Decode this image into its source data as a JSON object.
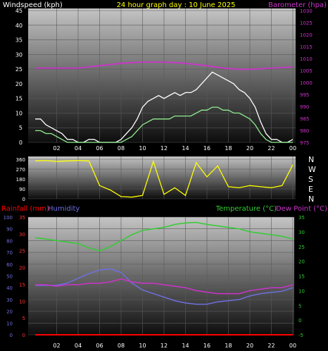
{
  "header": {
    "windspeed_label": "Windspeed (kph)",
    "title": "24 hour graph day : 10 June 2025",
    "barometer_label": "Barometer (hpa)"
  },
  "panel2": {
    "direction_labels": [
      "N",
      "W",
      "S",
      "E",
      "N"
    ]
  },
  "panel3": {
    "rainfall_label": "Rainfall (mm)",
    "humidity_label": "Humidity",
    "temperature_label": "Temperature (°C)",
    "dewpoint_label": "Dew Point (°C)"
  },
  "colors": {
    "windspeed": "#ffffff",
    "wind_average": "#90ee90",
    "barometer": "#cc33cc",
    "wind_direction": "#ffff00",
    "rainfall": "#ff0000",
    "rainfall_rate": "#cc33cc",
    "humidity": "#6f6fe0",
    "temperature": "#33cc33",
    "dewpoint": "#cc33cc",
    "hour_ticks": "#ffff00"
  },
  "chart_data": [
    {
      "type": "line",
      "name": "wind-barometer",
      "x_ticks": [
        "02",
        "04",
        "06",
        "08",
        "10",
        "12",
        "14",
        "16",
        "18",
        "20",
        "22",
        "00"
      ],
      "y_left_ticks": [
        "0",
        "5",
        "10",
        "15",
        "20",
        "25",
        "30",
        "35",
        "40",
        "45"
      ],
      "ylim_left": [
        0,
        45
      ],
      "y_right_ticks": [
        "975",
        "980",
        "985",
        "990",
        "995",
        "1000",
        "1005",
        "1010",
        "1015",
        "1020",
        "1025",
        "1030"
      ],
      "ylim_right": [
        975,
        1030
      ],
      "grid": true,
      "series": [
        {
          "key": "gust",
          "axis": "left",
          "x": [
            0,
            0.5,
            1,
            1.5,
            2,
            2.5,
            3,
            3.5,
            4,
            4.5,
            5,
            5.5,
            6,
            6.5,
            7,
            7.5,
            8,
            8.5,
            9,
            9.5,
            10,
            10.5,
            11,
            11.5,
            12,
            12.5,
            13,
            13.5,
            14,
            14.5,
            15,
            15.5,
            16,
            16.5,
            17,
            17.5,
            18,
            18.5,
            19,
            19.5,
            20,
            20.5,
            21,
            21.5,
            22,
            22.5,
            23,
            23.5,
            24
          ],
          "values": [
            8,
            8,
            6,
            5,
            4,
            3,
            1,
            1,
            0,
            0,
            1,
            1,
            0,
            0,
            0,
            0,
            1,
            3,
            5,
            8,
            12,
            14,
            15,
            16,
            15,
            16,
            17,
            16,
            17,
            17,
            18,
            20,
            22,
            24,
            23,
            22,
            21,
            20,
            18,
            17,
            15,
            12,
            7,
            3,
            1,
            1,
            0,
            0,
            1
          ]
        },
        {
          "key": "average",
          "axis": "left",
          "x": [
            0,
            0.5,
            1,
            1.5,
            2,
            2.5,
            3,
            3.5,
            4,
            4.5,
            5,
            5.5,
            6,
            6.5,
            7,
            7.5,
            8,
            8.5,
            9,
            9.5,
            10,
            10.5,
            11,
            11.5,
            12,
            12.5,
            13,
            13.5,
            14,
            14.5,
            15,
            15.5,
            16,
            16.5,
            17,
            17.5,
            18,
            18.5,
            19,
            19.5,
            20,
            20.5,
            21,
            21.5,
            22,
            22.5,
            23,
            23.5,
            24
          ],
          "values": [
            4,
            4,
            3,
            3,
            2,
            1,
            0,
            0,
            0,
            0,
            0,
            0,
            0,
            0,
            0,
            0,
            0,
            1,
            2,
            4,
            6,
            7,
            8,
            8,
            8,
            8,
            9,
            9,
            9,
            9,
            10,
            11,
            11,
            12,
            12,
            11,
            11,
            10,
            10,
            9,
            8,
            6,
            3,
            1,
            0,
            0,
            0,
            0,
            0
          ]
        },
        {
          "key": "barometer",
          "axis": "right",
          "x": [
            0,
            1,
            2,
            3,
            4,
            5,
            6,
            7,
            8,
            9,
            10,
            11,
            12,
            13,
            14,
            15,
            16,
            17,
            18,
            19,
            20,
            21,
            22,
            23,
            24
          ],
          "values": [
            1006,
            1006,
            1006,
            1006,
            1006,
            1006.5,
            1007,
            1007.5,
            1008,
            1008.3,
            1008.5,
            1008.5,
            1008.5,
            1008.3,
            1008,
            1007.5,
            1007,
            1006.3,
            1005.8,
            1005.5,
            1005.5,
            1005.7,
            1006,
            1006.2,
            1006.5
          ]
        }
      ]
    },
    {
      "type": "line",
      "name": "wind-direction",
      "x_ticks": [
        "02",
        "04",
        "06",
        "08",
        "10",
        "12",
        "14",
        "16",
        "18",
        "20",
        "22",
        "00"
      ],
      "y_ticks": [
        "0",
        "90",
        "180",
        "270",
        "360"
      ],
      "ylim": [
        0,
        360
      ],
      "grid": true,
      "series": [
        {
          "key": "direction",
          "x": [
            0,
            1,
            2,
            3,
            4,
            5,
            6,
            7,
            8,
            9,
            10,
            11,
            12,
            13,
            14,
            15,
            16,
            17,
            18,
            19,
            20,
            21,
            22,
            23,
            24
          ],
          "values": [
            345,
            350,
            340,
            345,
            350,
            345,
            120,
            80,
            20,
            15,
            30,
            340,
            40,
            100,
            30,
            330,
            200,
            300,
            110,
            100,
            120,
            110,
            100,
            120,
            310
          ]
        }
      ]
    },
    {
      "type": "line",
      "name": "temperature-humidity-rain",
      "x_ticks": [
        "02",
        "04",
        "06",
        "08",
        "10",
        "12",
        "14",
        "16",
        "18",
        "20",
        "22",
        "00"
      ],
      "y_humidity_ticks": [
        "0",
        "10",
        "20",
        "30",
        "40",
        "50",
        "60",
        "70",
        "80",
        "90",
        "100"
      ],
      "ylim_humidity": [
        0,
        100
      ],
      "y_rain_ticks": [
        "0",
        "5",
        "10",
        "15",
        "20",
        "25",
        "30",
        "35"
      ],
      "ylim_rain": [
        0,
        35
      ],
      "y_temp_ticks": [
        "-5",
        "0",
        "5",
        "10",
        "15",
        "20",
        "25",
        "30",
        "35"
      ],
      "ylim_temp": [
        -5,
        35
      ],
      "grid": true,
      "series": [
        {
          "key": "temperature",
          "axis": "temp",
          "x": [
            0,
            1,
            2,
            3,
            4,
            5,
            6,
            7,
            8,
            9,
            10,
            11,
            12,
            13,
            14,
            15,
            16,
            17,
            18,
            19,
            20,
            21,
            22,
            23,
            24
          ],
          "values": [
            28,
            27.5,
            27,
            26.5,
            26,
            24.5,
            23.5,
            25,
            27,
            29,
            30.5,
            31,
            31.5,
            32.5,
            33,
            33.2,
            32.5,
            32,
            31.5,
            31,
            30,
            29.5,
            29,
            28.5,
            27.5
          ]
        },
        {
          "key": "dewpoint",
          "axis": "temp",
          "x": [
            0,
            1,
            2,
            3,
            4,
            5,
            6,
            7,
            8,
            9,
            10,
            11,
            12,
            13,
            14,
            15,
            16,
            17,
            18,
            19,
            20,
            21,
            22,
            23,
            24
          ],
          "values": [
            12,
            12,
            11.5,
            12,
            12,
            12.5,
            12.5,
            13,
            14,
            13,
            12.5,
            12.5,
            12,
            11.5,
            11,
            10,
            9.5,
            9,
            9,
            9,
            10,
            10.5,
            11,
            11,
            12
          ]
        },
        {
          "key": "humidity",
          "axis": "humidity",
          "x": [
            0,
            1,
            2,
            3,
            4,
            5,
            6,
            7,
            8,
            9,
            10,
            11,
            12,
            13,
            14,
            15,
            16,
            17,
            18,
            19,
            20,
            21,
            22,
            23,
            24
          ],
          "values": [
            42,
            42,
            42,
            44,
            48,
            52,
            55,
            56,
            53,
            44,
            38,
            35,
            32,
            29,
            27,
            26,
            26,
            28,
            29,
            30,
            33,
            35,
            36,
            37,
            40
          ]
        },
        {
          "key": "rainfall",
          "axis": "rain",
          "x": [
            0,
            24
          ],
          "values": [
            0,
            0
          ]
        }
      ]
    }
  ]
}
